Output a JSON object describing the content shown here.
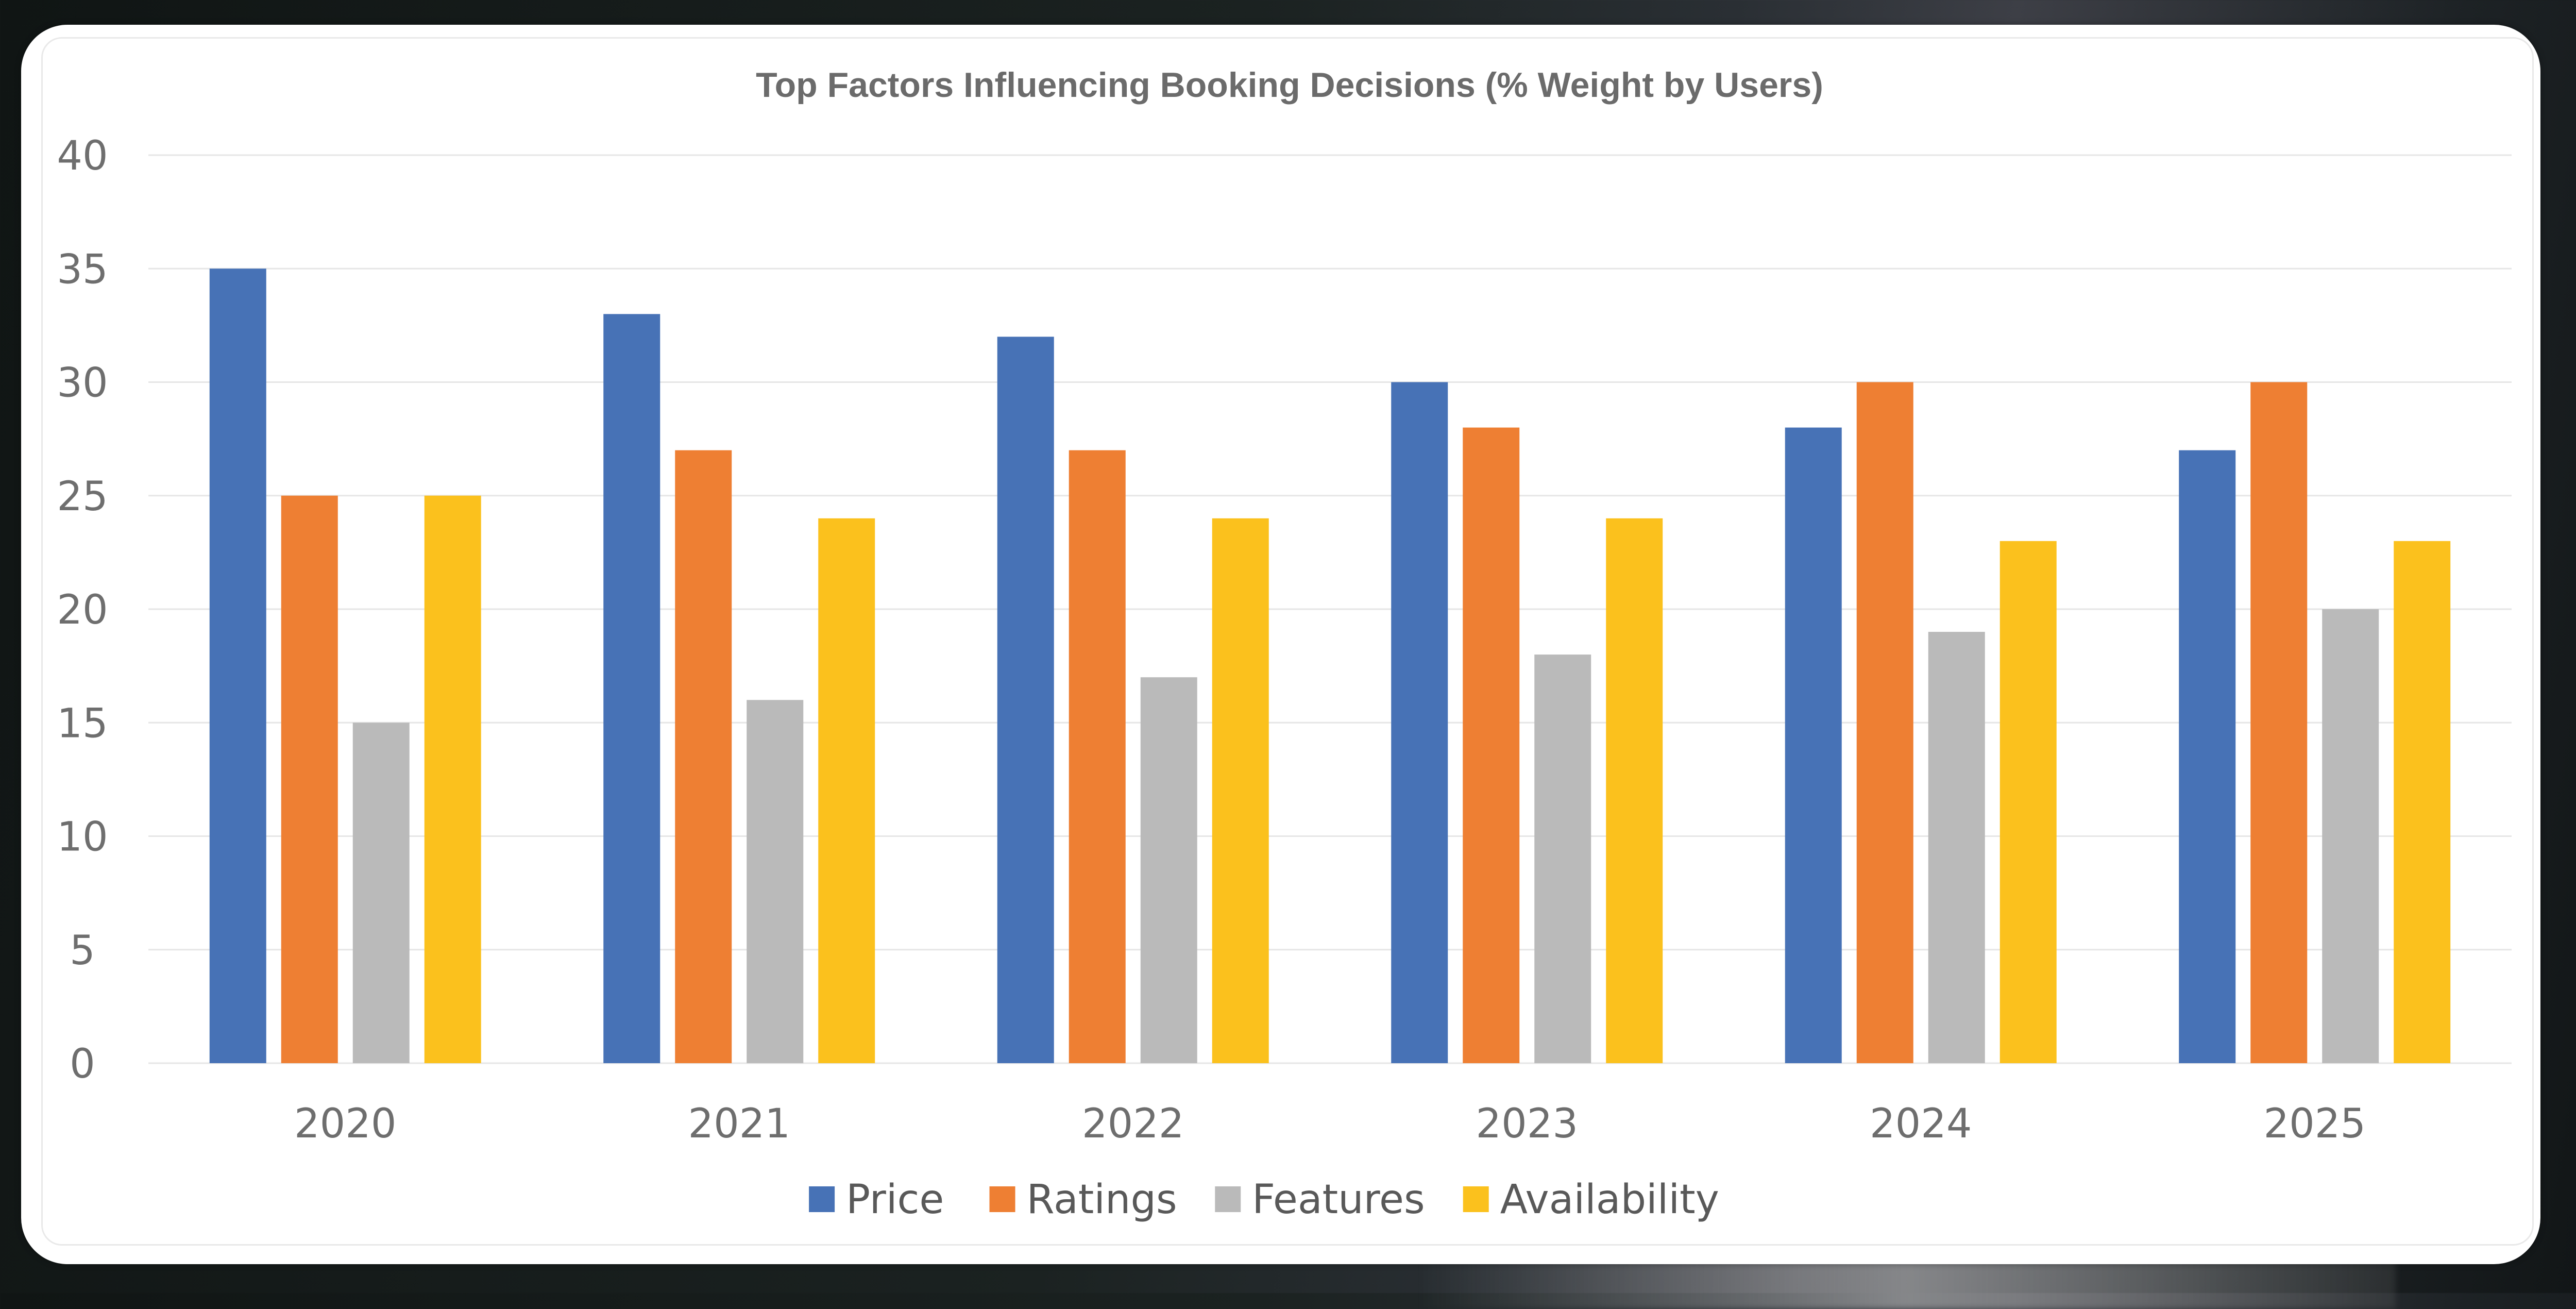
{
  "chart_data": {
    "type": "bar",
    "title": "Top Factors Influencing Booking Decisions (% Weight by Users)",
    "xlabel": "",
    "ylabel": "",
    "categories": [
      "2020",
      "2021",
      "2022",
      "2023",
      "2024",
      "2025"
    ],
    "ylim": [
      0,
      40
    ],
    "yticks": [
      "0",
      "5",
      "10",
      "15",
      "20",
      "25",
      "30",
      "35",
      "40"
    ],
    "grid": true,
    "legend_position": "bottom",
    "series": [
      {
        "name": "Price",
        "color": "#4772b6",
        "values": [
          35,
          33,
          32,
          30,
          28,
          27
        ]
      },
      {
        "name": "Ratings",
        "color": "#ee7f33",
        "values": [
          25,
          27,
          27,
          28,
          30,
          30
        ]
      },
      {
        "name": "Features",
        "color": "#bababa",
        "values": [
          15,
          16,
          17,
          18,
          19,
          20
        ]
      },
      {
        "name": "Availability",
        "color": "#fbc11d",
        "values": [
          25,
          24,
          24,
          24,
          23,
          23
        ]
      }
    ]
  }
}
